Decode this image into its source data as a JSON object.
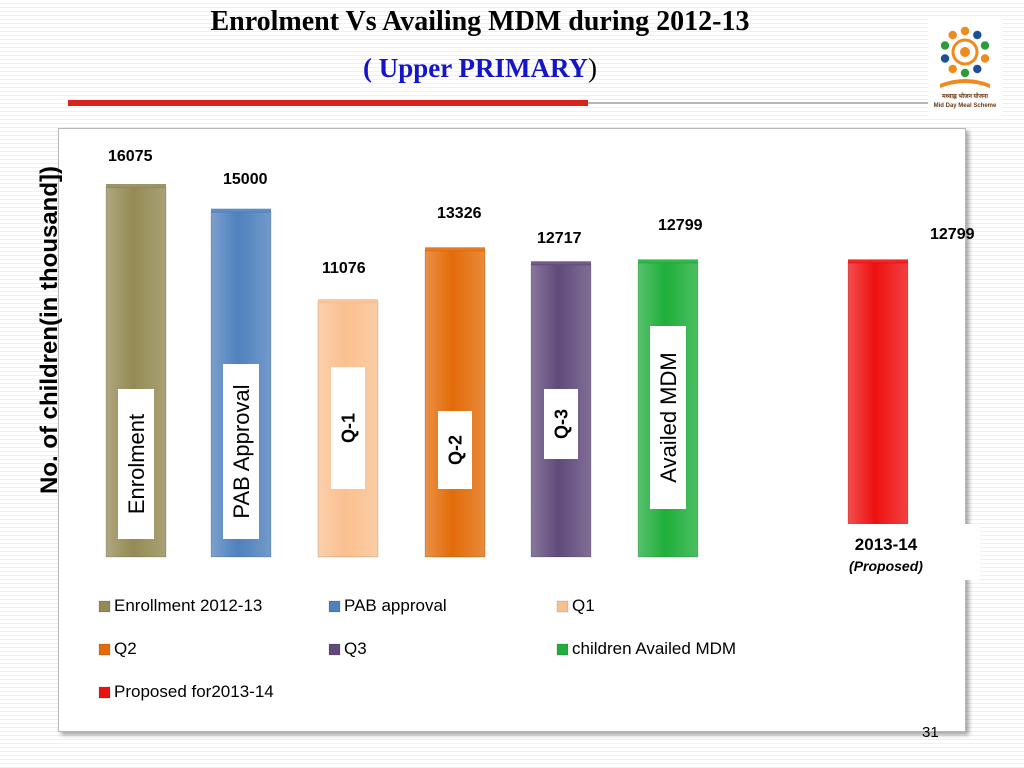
{
  "slide": {
    "title": "Enrolment Vs Availing MDM during 2012-13",
    "subtitle": "( Upper PRIMARY",
    "subtitle_close": ")",
    "page_number": "31",
    "logo_text_line1": "मध्याह्न भोजन योजना",
    "logo_text_line2": "Mid Day Meal Scheme"
  },
  "chart_data": {
    "type": "bar",
    "title": "",
    "ylabel": "No. of children(in thousand])",
    "series": [
      {
        "name": "Enrollment 2012-13",
        "value": 16075,
        "value_label": "16075",
        "bar_label": "Enrolment",
        "color": "#948a54"
      },
      {
        "name": "PAB approval",
        "value": 15000,
        "value_label": "15000",
        "bar_label": "PAB Approval",
        "color": "#4f81bd"
      },
      {
        "name": "Q1",
        "value": 11076,
        "value_label": "11076",
        "bar_label": "Q-1",
        "color": "#fac08f"
      },
      {
        "name": "Q2",
        "value": 13326,
        "value_label": "13326",
        "bar_label": "Q-2",
        "color": "#e36c09"
      },
      {
        "name": "Q3",
        "value": 12717,
        "value_label": "12717",
        "bar_label": "Q-3",
        "color": "#604a7b"
      },
      {
        "name": "children Availed MDM",
        "value": 12799,
        "value_label": "12799",
        "bar_label": "Availed MDM",
        "color": "#1fae3b"
      },
      {
        "name": "Proposed for2013-14",
        "value": 12799,
        "value_label": "12799",
        "bar_label": "",
        "color": "#ee1111"
      }
    ],
    "annotation": {
      "line1": "2013-14",
      "line2": "(Proposed)"
    },
    "legend_position": "bottom",
    "grid": false
  }
}
